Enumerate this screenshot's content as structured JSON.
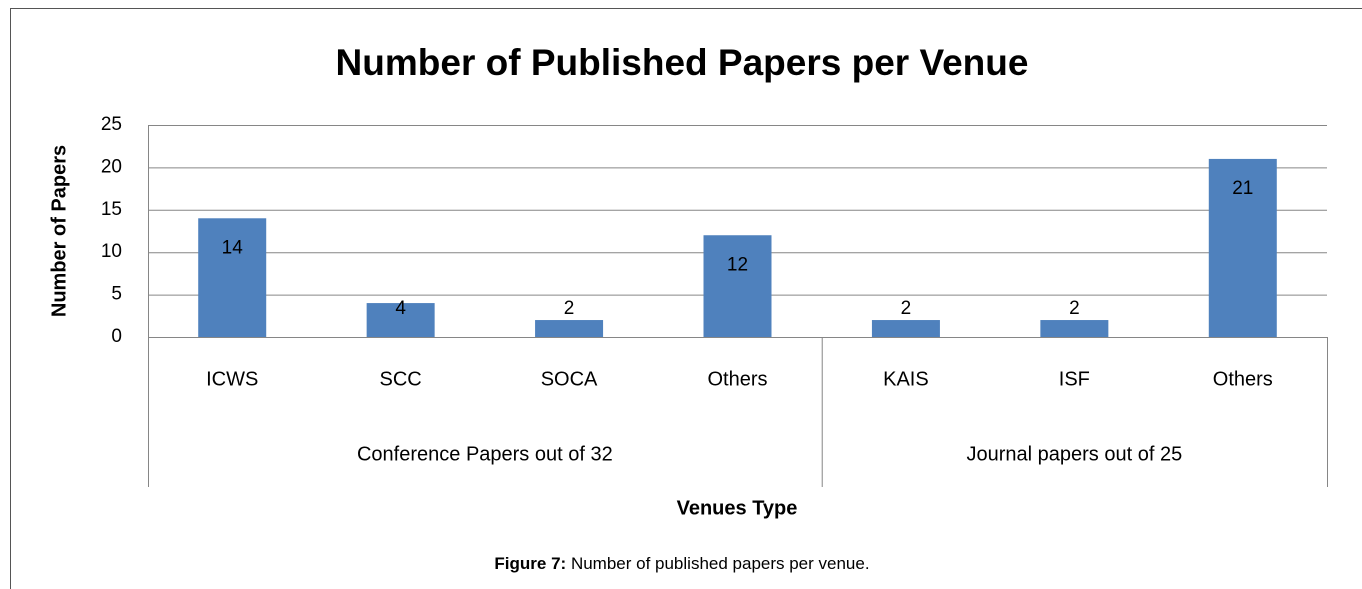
{
  "chart_data": {
    "type": "bar",
    "title": "Number of Published Papers per Venue",
    "ylabel": "Number of Papers",
    "xlabel": "Venues Type",
    "color": "#4f81bd",
    "grid": true,
    "ylim": [
      0,
      25
    ],
    "yticks": [
      0,
      5,
      10,
      15,
      20,
      25
    ],
    "groups": [
      {
        "label": "Conference Papers out of 32",
        "categories": [
          "ICWS",
          "SCC",
          "SOCA",
          "Others"
        ],
        "values": [
          14,
          4,
          2,
          12
        ]
      },
      {
        "label": "Journal papers out of 25",
        "categories": [
          "KAIS",
          "ISF",
          "Others"
        ],
        "values": [
          2,
          2,
          21
        ]
      }
    ]
  },
  "caption": {
    "label": "Figure 7:",
    "text": "Number of published papers per venue."
  }
}
